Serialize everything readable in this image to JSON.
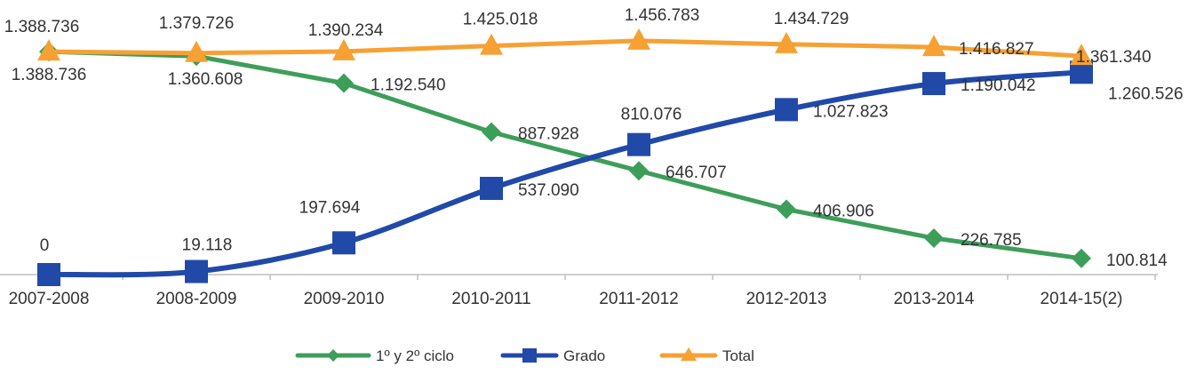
{
  "chart_data": {
    "type": "line",
    "categories": [
      "2007-2008",
      "2008-2009",
      "2009-2010",
      "2010-2011",
      "2011-2012",
      "2012-2013",
      "2013-2014",
      "2014-15(2)"
    ],
    "series": [
      {
        "name": "1º y 2º ciclo",
        "color": "#3d9e5a",
        "marker": "diamond",
        "values": [
          1388736,
          1360608,
          1192540,
          887928,
          646707,
          406906,
          226785,
          100814
        ],
        "labels": [
          "1.388.736",
          "1.360.608",
          "1.192.540",
          "887.928",
          "646.707",
          "406.906",
          "226.785",
          "100.814"
        ]
      },
      {
        "name": "Grado",
        "color": "#2149a8",
        "marker": "square",
        "values": [
          0,
          19118,
          197694,
          537090,
          810076,
          1027823,
          1190042,
          1260526
        ],
        "labels": [
          "0",
          "19.118",
          "197.694",
          "537.090",
          "810.076",
          "1.027.823",
          "1.190.042",
          "1.260.526"
        ]
      },
      {
        "name": "Total",
        "color": "#f7a033",
        "marker": "triangle",
        "values": [
          1388736,
          1379726,
          1390234,
          1425018,
          1456783,
          1434729,
          1416827,
          1361340
        ],
        "labels": [
          "1.388.736",
          "1.379.726",
          "1.390.234",
          "1.425.018",
          "1.456.783",
          "1.434.729",
          "1.416.827",
          "1.361.340"
        ]
      }
    ],
    "ylim": [
      0,
      1600000
    ],
    "grid": false,
    "legend_position": "bottom",
    "title": "",
    "xlabel": "",
    "ylabel": ""
  }
}
